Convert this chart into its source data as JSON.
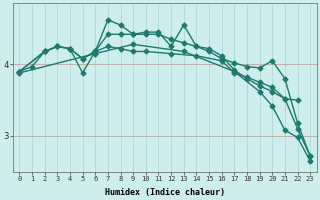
{
  "xlabel": "Humidex (Indice chaleur)",
  "ylabel": "",
  "background_color": "#cdeeed",
  "line_color": "#1e7a6e",
  "grid_color_v": "#aed8d5",
  "grid_color_h": "#c0b0b0",
  "xlim": [
    -0.5,
    23.5
  ],
  "ylim": [
    2.5,
    4.85
  ],
  "yticks": [
    3,
    4
  ],
  "xticks": [
    0,
    1,
    2,
    3,
    4,
    5,
    6,
    7,
    8,
    9,
    10,
    11,
    12,
    13,
    14,
    15,
    16,
    17,
    18,
    19,
    20,
    21,
    22,
    23
  ],
  "lines": [
    {
      "x": [
        0,
        1,
        2,
        3,
        4,
        5,
        6,
        7,
        8,
        9,
        10,
        11,
        12,
        13,
        14,
        15,
        16,
        17,
        18,
        19,
        20,
        21,
        22,
        23
      ],
      "y": [
        3.9,
        3.97,
        4.18,
        4.25,
        4.22,
        3.88,
        4.18,
        4.62,
        4.55,
        4.42,
        4.45,
        4.45,
        4.25,
        4.55,
        4.25,
        4.18,
        4.08,
        4.02,
        3.97,
        3.95,
        4.05,
        3.8,
        3.18,
        2.72
      ]
    },
    {
      "x": [
        0,
        2,
        3,
        4,
        5,
        6,
        7,
        8,
        9,
        10,
        11,
        12,
        13,
        14,
        15,
        16,
        17,
        18,
        19,
        20,
        21,
        22,
        23
      ],
      "y": [
        3.9,
        4.18,
        4.25,
        4.22,
        4.08,
        4.18,
        4.42,
        4.42,
        4.42,
        4.42,
        4.42,
        4.35,
        4.3,
        4.25,
        4.22,
        4.12,
        3.92,
        3.8,
        3.7,
        3.62,
        3.52,
        3.1,
        2.72
      ]
    },
    {
      "x": [
        0,
        2,
        3,
        4,
        5,
        6,
        7,
        8,
        9,
        10,
        12,
        14,
        16,
        17,
        18,
        19,
        20,
        21,
        22
      ],
      "y": [
        3.9,
        4.18,
        4.25,
        4.22,
        4.08,
        4.18,
        4.25,
        4.22,
        4.18,
        4.18,
        4.15,
        4.12,
        4.05,
        3.88,
        3.82,
        3.75,
        3.68,
        3.52,
        3.5
      ]
    },
    {
      "x": [
        0,
        6,
        9,
        13,
        17,
        19,
        20,
        21,
        22,
        23
      ],
      "y": [
        3.88,
        4.15,
        4.28,
        4.18,
        3.9,
        3.62,
        3.42,
        3.08,
        2.98,
        2.65
      ]
    }
  ],
  "marker": "D",
  "markersize": 2.5,
  "linewidth": 1.0
}
